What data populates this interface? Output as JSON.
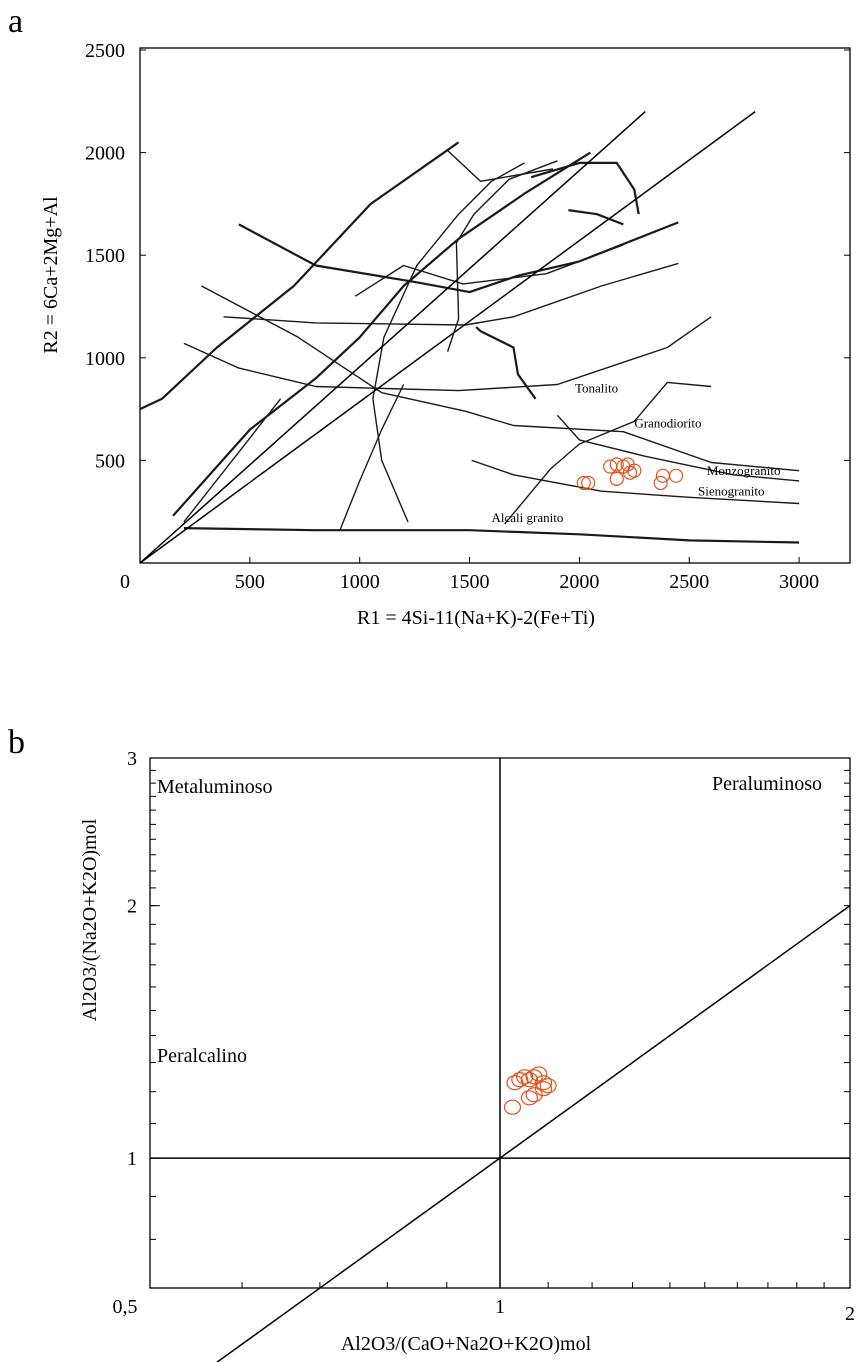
{
  "chart_data": [
    {
      "panel": "a",
      "type": "scatter",
      "xlabel": "R1 = 4Si-11(Na+K)-2(Fe+Ti)",
      "ylabel": "R2 = 6Ca+2Mg+Al",
      "xlim": [
        0,
        3200
      ],
      "ylim": [
        0,
        2500
      ],
      "x_ticks": [
        0,
        500,
        1000,
        1500,
        2000,
        2500,
        3000
      ],
      "y_ticks": [
        500,
        1000,
        1500,
        2000,
        2500
      ],
      "x_tick_labels": [
        "0",
        "500",
        "1000",
        "1500",
        "2000",
        "2500",
        "3000"
      ],
      "y_tick_labels": [
        "500",
        "1000",
        "1500",
        "2000",
        "2500"
      ],
      "field_labels": [
        {
          "text": "Tonalito",
          "x": 1980,
          "y": 830
        },
        {
          "text": "Granodiorito",
          "x": 2250,
          "y": 660
        },
        {
          "text": "Monzogranito",
          "x": 2580,
          "y": 430
        },
        {
          "text": "Sienogranito",
          "x": 2540,
          "y": 330
        },
        {
          "text": "Alcali granito",
          "x": 1600,
          "y": 200
        }
      ],
      "boundaries": [
        [
          [
            0,
            750
          ],
          [
            100,
            800
          ],
          [
            350,
            1050
          ],
          [
            700,
            1350
          ],
          [
            1050,
            1750
          ],
          [
            1450,
            2050
          ]
        ],
        [
          [
            200,
            1070
          ],
          [
            450,
            950
          ],
          [
            800,
            860
          ],
          [
            1450,
            840
          ],
          [
            1900,
            870
          ],
          [
            2400,
            1050
          ],
          [
            2600,
            1200
          ]
        ],
        [
          [
            380,
            1200
          ],
          [
            800,
            1170
          ],
          [
            1480,
            1160
          ],
          [
            1700,
            1200
          ],
          [
            2100,
            1350
          ],
          [
            2450,
            1460
          ]
        ],
        [
          [
            450,
            1650
          ],
          [
            800,
            1450
          ],
          [
            1250,
            1370
          ],
          [
            1500,
            1320
          ],
          [
            1720,
            1400
          ],
          [
            2000,
            1470
          ],
          [
            2450,
            1660
          ]
        ],
        [
          [
            1400,
            2010
          ],
          [
            1550,
            1860
          ],
          [
            1880,
            1920
          ]
        ],
        [
          [
            980,
            1300
          ],
          [
            1200,
            1450
          ],
          [
            1470,
            1360
          ],
          [
            1850,
            1410
          ],
          [
            2200,
            1550
          ]
        ],
        [
          [
            1780,
            1880
          ],
          [
            2000,
            1950
          ],
          [
            2170,
            1950
          ],
          [
            2250,
            1820
          ],
          [
            2270,
            1700
          ]
        ],
        [
          [
            280,
            1350
          ],
          [
            580,
            1180
          ],
          [
            720,
            1100
          ],
          [
            1100,
            830
          ],
          [
            1480,
            740
          ],
          [
            1700,
            670
          ],
          [
            2200,
            640
          ],
          [
            2600,
            490
          ],
          [
            3000,
            450
          ]
        ],
        [
          [
            1900,
            720
          ],
          [
            2000,
            600
          ],
          [
            2300,
            520
          ],
          [
            2700,
            430
          ],
          [
            3000,
            400
          ]
        ],
        [
          [
            150,
            230
          ],
          [
            500,
            650
          ],
          [
            800,
            900
          ],
          [
            1000,
            1100
          ],
          [
            1200,
            1350
          ],
          [
            1450,
            1580
          ],
          [
            1750,
            1800
          ],
          [
            2050,
            2000
          ]
        ],
        [
          [
            1400,
            1030
          ],
          [
            1450,
            1190
          ],
          [
            1440,
            1560
          ],
          [
            1520,
            1700
          ],
          [
            1680,
            1870
          ],
          [
            1900,
            1960
          ]
        ],
        [
          [
            1220,
            200
          ],
          [
            1100,
            500
          ],
          [
            1060,
            800
          ],
          [
            1110,
            1100
          ],
          [
            1260,
            1450
          ],
          [
            1450,
            1700
          ],
          [
            1600,
            1860
          ],
          [
            1750,
            1950
          ]
        ],
        [
          [
            1530,
            1150
          ],
          [
            1550,
            1130
          ],
          [
            1700,
            1050
          ],
          [
            1720,
            920
          ],
          [
            1800,
            800
          ]
        ],
        [
          [
            1660,
            190
          ],
          [
            1870,
            460
          ],
          [
            2000,
            580
          ],
          [
            2250,
            690
          ],
          [
            2400,
            880
          ],
          [
            2600,
            860
          ]
        ],
        [
          [
            1510,
            500
          ],
          [
            1700,
            430
          ],
          [
            2100,
            350
          ],
          [
            2500,
            320
          ],
          [
            3000,
            290
          ]
        ],
        [
          [
            200,
            170
          ],
          [
            800,
            160
          ],
          [
            1500,
            160
          ],
          [
            2000,
            140
          ],
          [
            2500,
            110
          ],
          [
            3000,
            100
          ]
        ],
        [
          [
            910,
            160
          ],
          [
            1000,
            400
          ],
          [
            1100,
            650
          ],
          [
            1200,
            870
          ]
        ],
        [
          [
            200,
            200
          ],
          [
            420,
            500
          ],
          [
            640,
            800
          ]
        ],
        [
          [
            1950,
            1720
          ],
          [
            2080,
            1700
          ],
          [
            2200,
            1650
          ]
        ]
      ],
      "diagonals": [
        [
          [
            0,
            0
          ],
          [
            2800,
            2200
          ]
        ],
        [
          [
            0,
            0
          ],
          [
            2300,
            2200
          ]
        ]
      ],
      "points": [
        {
          "x": 2020,
          "y": 390
        },
        {
          "x": 2040,
          "y": 390
        },
        {
          "x": 2140,
          "y": 470
        },
        {
          "x": 2170,
          "y": 480
        },
        {
          "x": 2200,
          "y": 470
        },
        {
          "x": 2220,
          "y": 480
        },
        {
          "x": 2230,
          "y": 440
        },
        {
          "x": 2250,
          "y": 450
        },
        {
          "x": 2170,
          "y": 410
        },
        {
          "x": 2370,
          "y": 390
        },
        {
          "x": 2380,
          "y": 425
        },
        {
          "x": 2440,
          "y": 425
        }
      ],
      "point_color": "#e0521c"
    },
    {
      "panel": "b",
      "type": "scatter",
      "xlabel": "Al2O3/(CaO+Na2O+K2O)mol",
      "ylabel": "Al2O3/(Na2O+K2O)mol",
      "xscale": "log",
      "yscale": "log",
      "xlim": [
        0.5,
        2
      ],
      "ylim": [
        0.7,
        3
      ],
      "x_tick_labels": [
        "0,5",
        "1",
        "2"
      ],
      "y_tick_labels": [
        "1",
        "2",
        "3"
      ],
      "region_labels": [
        "Metaluminoso",
        "Peraluminoso",
        "Peralcalino"
      ],
      "lines": [
        {
          "from": [
            0.5,
            0.5
          ],
          "to": [
            2,
            2
          ],
          "style": "diagonal"
        },
        {
          "value": 1,
          "orientation": "vertical"
        },
        {
          "value": 1,
          "orientation": "horizontal"
        }
      ],
      "points": [
        {
          "x": 1.025,
          "y": 1.15
        },
        {
          "x": 1.03,
          "y": 1.23
        },
        {
          "x": 1.04,
          "y": 1.24
        },
        {
          "x": 1.05,
          "y": 1.25
        },
        {
          "x": 1.06,
          "y": 1.24
        },
        {
          "x": 1.07,
          "y": 1.25
        },
        {
          "x": 1.08,
          "y": 1.26
        },
        {
          "x": 1.09,
          "y": 1.23
        },
        {
          "x": 1.09,
          "y": 1.21
        },
        {
          "x": 1.07,
          "y": 1.19
        },
        {
          "x": 1.06,
          "y": 1.18
        },
        {
          "x": 1.1,
          "y": 1.22
        }
      ],
      "point_color": "#e0521c"
    }
  ]
}
